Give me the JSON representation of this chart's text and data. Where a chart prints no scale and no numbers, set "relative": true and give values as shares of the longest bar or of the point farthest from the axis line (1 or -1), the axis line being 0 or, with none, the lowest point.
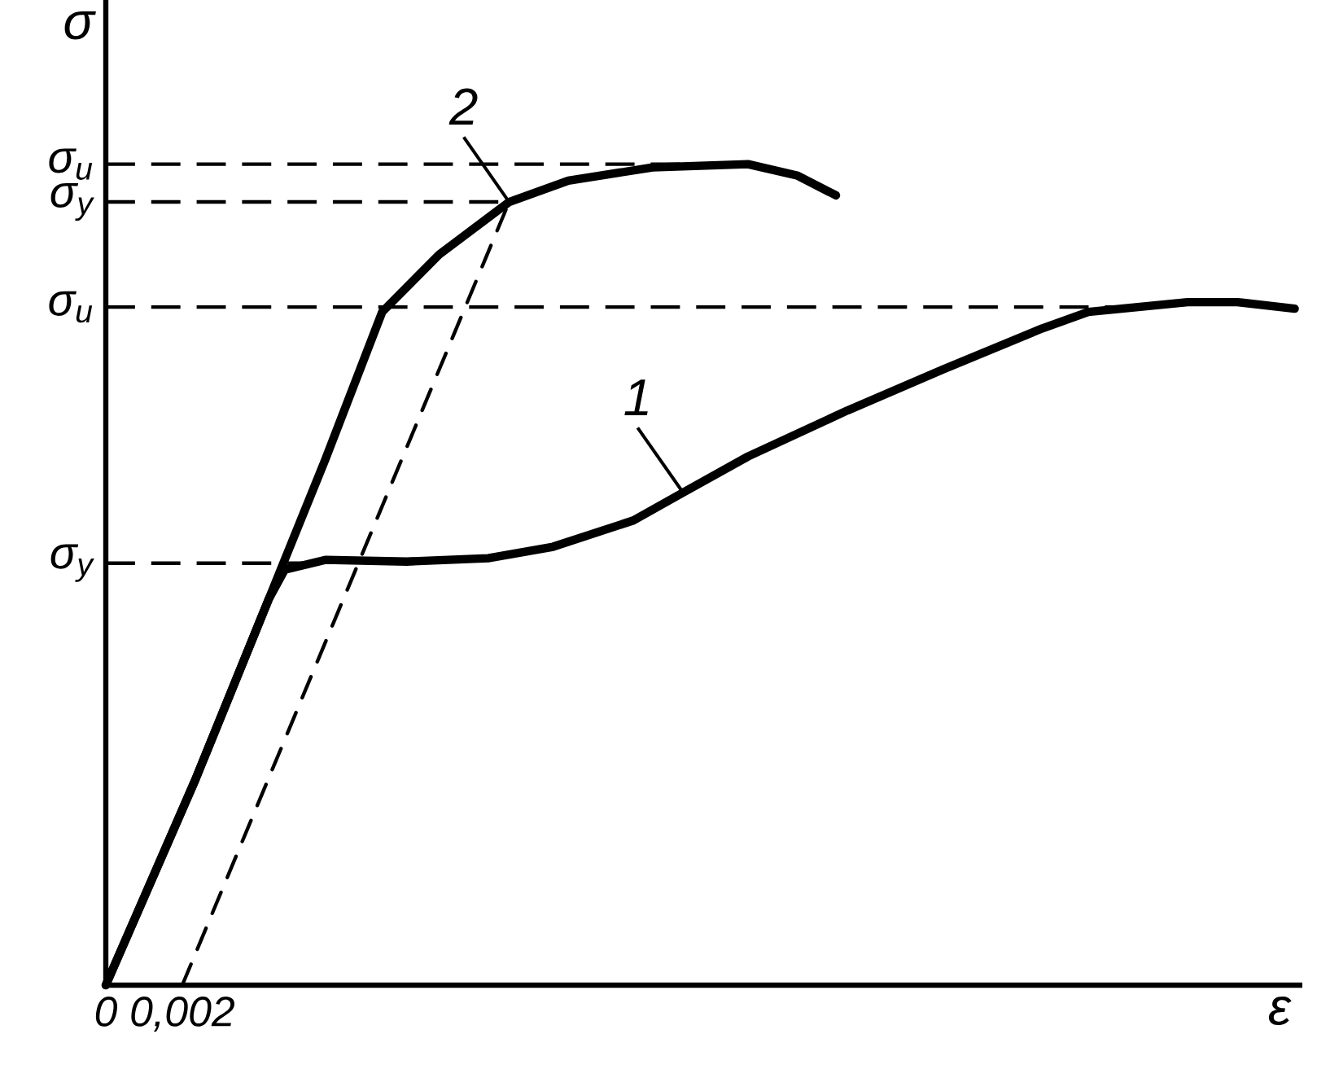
{
  "chart_data": {
    "type": "line",
    "relative": true,
    "xlabel": "ε",
    "ylabel": "σ",
    "xlim": [
      0,
      0.0313
    ],
    "xticks": [
      0,
      {
        "value": 0.002,
        "label": "0,002"
      }
    ],
    "series": [
      {
        "name": "1",
        "color": "#000000",
        "x": [
          0,
          0.00234,
          0.00426,
          0.00468,
          0.00574,
          0.00787,
          0.01,
          0.0117,
          0.0138,
          0.0151,
          0.0168,
          0.0194,
          0.0219,
          0.0245,
          0.0257,
          0.0283,
          0.0296,
          0.0311
        ],
        "values": [
          0,
          0.25,
          0.47,
          0.506,
          0.518,
          0.516,
          0.52,
          0.534,
          0.566,
          0.6,
          0.644,
          0.7,
          0.75,
          0.8,
          0.82,
          0.832,
          0.832,
          0.824
        ]
      },
      {
        "name": "2",
        "color": "#000000",
        "x": [
          0,
          0.00234,
          0.00426,
          0.00574,
          0.00723,
          0.00872,
          0.01055,
          0.0121,
          0.0143,
          0.0168,
          0.0181,
          0.0191
        ],
        "values": [
          0,
          0.25,
          0.47,
          0.64,
          0.82,
          0.89,
          0.954,
          0.98,
          0.996,
          1.0,
          0.986,
          0.962
        ]
      },
      {
        "color": "#000000",
        "line_style": "dashed",
        "x": [
          0.002,
          0.01055
        ],
        "values": [
          0,
          0.954
        ]
      }
    ],
    "ref_lines": [
      {
        "axis": "y",
        "value": 1.0,
        "label": "σ$_{u}$",
        "line_style": "dashed"
      },
      {
        "axis": "y",
        "value": 0.954,
        "label": "σ$_{y}$",
        "line_style": "dashed"
      },
      {
        "axis": "y",
        "value": 0.826,
        "label": "σ$_{u}$",
        "line_style": "dashed"
      },
      {
        "axis": "y",
        "value": 0.514,
        "label": "σ$_{y}$",
        "line_style": "dashed"
      }
    ]
  }
}
